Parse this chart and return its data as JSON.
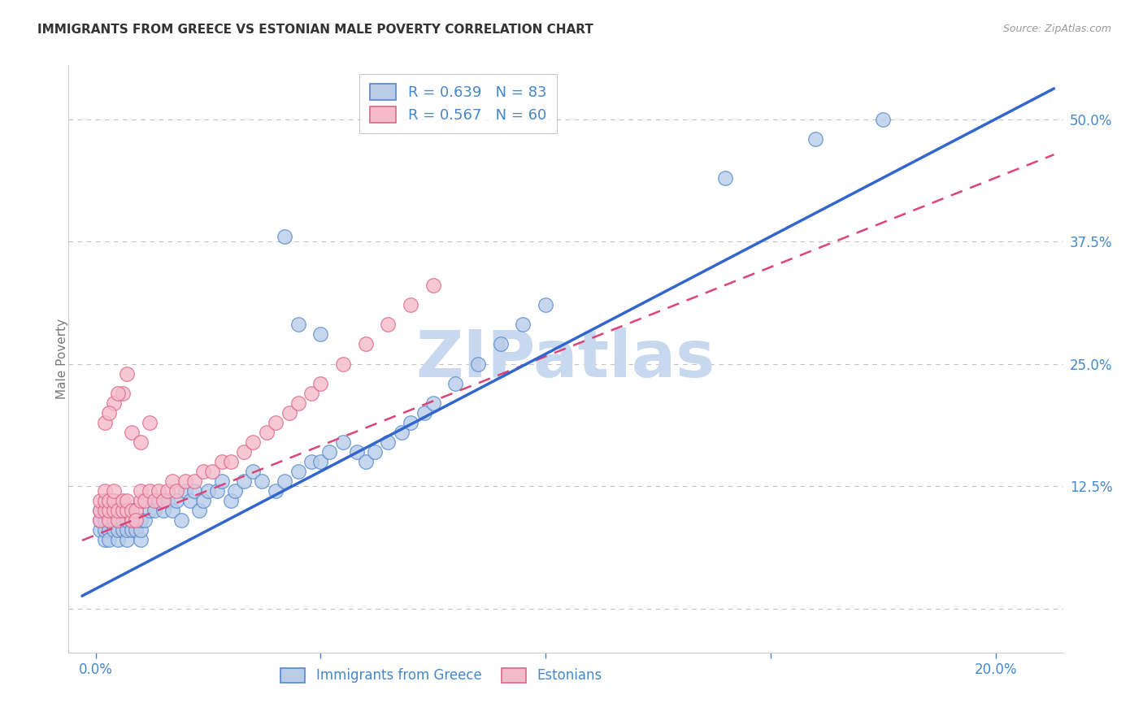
{
  "title": "IMMIGRANTS FROM GREECE VS ESTONIAN MALE POVERTY CORRELATION CHART",
  "source": "Source: ZipAtlas.com",
  "ylabel_label": "Male Poverty",
  "x_ticks": [
    0.0,
    0.05,
    0.1,
    0.15,
    0.2
  ],
  "x_tick_labels": [
    "0.0%",
    "",
    "",
    "",
    "20.0%"
  ],
  "y_ticks": [
    0.0,
    0.125,
    0.25,
    0.375,
    0.5
  ],
  "y_right_tick_labels": [
    "",
    "12.5%",
    "25.0%",
    "37.5%",
    "50.0%"
  ],
  "xlim": [
    -0.006,
    0.215
  ],
  "ylim": [
    -0.045,
    0.555
  ],
  "legend_r1": "R = 0.639   N = 83",
  "legend_r2": "R = 0.567   N = 60",
  "legend_s1": "Immigrants from Greece",
  "legend_s2": "Estonians",
  "watermark": "ZIPatlas",
  "blue_fill": "#B8CCE8",
  "blue_edge": "#5588CC",
  "pink_fill": "#F4BBCC",
  "pink_edge": "#DD6688",
  "blue_line": "#3366CC",
  "pink_line": "#DD4477",
  "axis_color": "#4488CC",
  "title_color": "#333333",
  "source_color": "#999999",
  "grid_color": "#BBBBBB",
  "watermark_color": "#C8D8EE",
  "greece_trend": [
    0.02,
    0.5
  ],
  "estonian_trend": [
    0.075,
    0.44
  ],
  "greece_x": [
    0.001,
    0.001,
    0.001,
    0.002,
    0.002,
    0.002,
    0.002,
    0.002,
    0.003,
    0.003,
    0.003,
    0.003,
    0.003,
    0.004,
    0.004,
    0.004,
    0.004,
    0.005,
    0.005,
    0.005,
    0.005,
    0.006,
    0.006,
    0.006,
    0.007,
    0.007,
    0.007,
    0.008,
    0.008,
    0.008,
    0.009,
    0.009,
    0.01,
    0.01,
    0.01,
    0.011,
    0.012,
    0.013,
    0.014,
    0.015,
    0.016,
    0.017,
    0.018,
    0.019,
    0.02,
    0.021,
    0.022,
    0.023,
    0.024,
    0.025,
    0.027,
    0.028,
    0.03,
    0.031,
    0.033,
    0.035,
    0.037,
    0.04,
    0.042,
    0.045,
    0.048,
    0.05,
    0.052,
    0.055,
    0.058,
    0.06,
    0.062,
    0.065,
    0.068,
    0.07,
    0.073,
    0.075,
    0.08,
    0.085,
    0.09,
    0.095,
    0.1,
    0.14,
    0.16,
    0.175,
    0.042,
    0.045,
    0.05
  ],
  "greece_y": [
    0.08,
    0.09,
    0.1,
    0.07,
    0.08,
    0.09,
    0.1,
    0.11,
    0.08,
    0.09,
    0.1,
    0.11,
    0.07,
    0.08,
    0.09,
    0.1,
    0.11,
    0.07,
    0.08,
    0.09,
    0.1,
    0.08,
    0.09,
    0.1,
    0.07,
    0.08,
    0.09,
    0.08,
    0.09,
    0.1,
    0.08,
    0.09,
    0.07,
    0.08,
    0.09,
    0.09,
    0.1,
    0.1,
    0.11,
    0.1,
    0.11,
    0.1,
    0.11,
    0.09,
    0.12,
    0.11,
    0.12,
    0.1,
    0.11,
    0.12,
    0.12,
    0.13,
    0.11,
    0.12,
    0.13,
    0.14,
    0.13,
    0.12,
    0.13,
    0.14,
    0.15,
    0.15,
    0.16,
    0.17,
    0.16,
    0.15,
    0.16,
    0.17,
    0.18,
    0.19,
    0.2,
    0.21,
    0.23,
    0.25,
    0.27,
    0.29,
    0.31,
    0.44,
    0.48,
    0.5,
    0.38,
    0.29,
    0.28
  ],
  "estonian_x": [
    0.001,
    0.001,
    0.001,
    0.002,
    0.002,
    0.002,
    0.003,
    0.003,
    0.003,
    0.004,
    0.004,
    0.004,
    0.005,
    0.005,
    0.006,
    0.006,
    0.007,
    0.007,
    0.008,
    0.008,
    0.009,
    0.01,
    0.01,
    0.011,
    0.012,
    0.013,
    0.014,
    0.015,
    0.016,
    0.017,
    0.018,
    0.02,
    0.022,
    0.024,
    0.026,
    0.028,
    0.03,
    0.033,
    0.035,
    0.038,
    0.04,
    0.043,
    0.045,
    0.048,
    0.05,
    0.055,
    0.06,
    0.065,
    0.07,
    0.075,
    0.002,
    0.004,
    0.006,
    0.008,
    0.01,
    0.012,
    0.003,
    0.005,
    0.007,
    0.009
  ],
  "estonian_y": [
    0.09,
    0.1,
    0.11,
    0.1,
    0.11,
    0.12,
    0.09,
    0.1,
    0.11,
    0.1,
    0.11,
    0.12,
    0.09,
    0.1,
    0.1,
    0.11,
    0.1,
    0.11,
    0.09,
    0.1,
    0.1,
    0.11,
    0.12,
    0.11,
    0.12,
    0.11,
    0.12,
    0.11,
    0.12,
    0.13,
    0.12,
    0.13,
    0.13,
    0.14,
    0.14,
    0.15,
    0.15,
    0.16,
    0.17,
    0.18,
    0.19,
    0.2,
    0.21,
    0.22,
    0.23,
    0.25,
    0.27,
    0.29,
    0.31,
    0.33,
    0.19,
    0.21,
    0.22,
    0.18,
    0.17,
    0.19,
    0.2,
    0.22,
    0.24,
    0.09
  ]
}
